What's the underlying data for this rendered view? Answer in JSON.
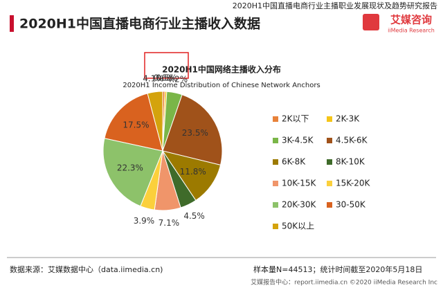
{
  "header": {
    "report": "2020H1中国直播电商行业主播职业发展现状及趋势研究报告",
    "title": "2020H1中国直播电商行业主播收入数据",
    "logo": "艾媒咨询",
    "logo_sub": "iiMedia Research"
  },
  "chart_data": {
    "type": "pie",
    "title": "2020H1中国网络主播收入分布",
    "subtitle": "2020H1 Income Distribution of Chinese Network Anchors",
    "categories": [
      "2K以下",
      "2K-3K",
      "3K-4.5K",
      "4.5K-6K",
      "6K-8K",
      "8K-10K",
      "10K-15K",
      "15K-20K",
      "20K-30K",
      "30-50K",
      "50K以上"
    ],
    "values": [
      0.6,
      0.5,
      4.2,
      23.5,
      11.8,
      4.5,
      7.1,
      3.9,
      22.3,
      17.5,
      4.1
    ],
    "value_labels": [
      "0.6%",
      "0.5%",
      "4.2%",
      "23.5%",
      "11.8%",
      "4.5%",
      "7.1%",
      "3.9%",
      "22.3%",
      "17.5%",
      "4.1%"
    ],
    "colors": [
      "#e8823a",
      "#f5c518",
      "#7ab648",
      "#a0521a",
      "#9c7a00",
      "#3f6b2a",
      "#f0956a",
      "#fbd03c",
      "#8dc26a",
      "#d9621f",
      "#d4a30c"
    ]
  },
  "footer": {
    "source": "数据来源：艾媒数据中心（data.iimedia.cn)",
    "sample": "样本量N=44513；统计时间截至2020年5月18日",
    "credit": "艾媒报告中心：report.iimedia.cn ©2020 iiMedia Research Inc"
  }
}
